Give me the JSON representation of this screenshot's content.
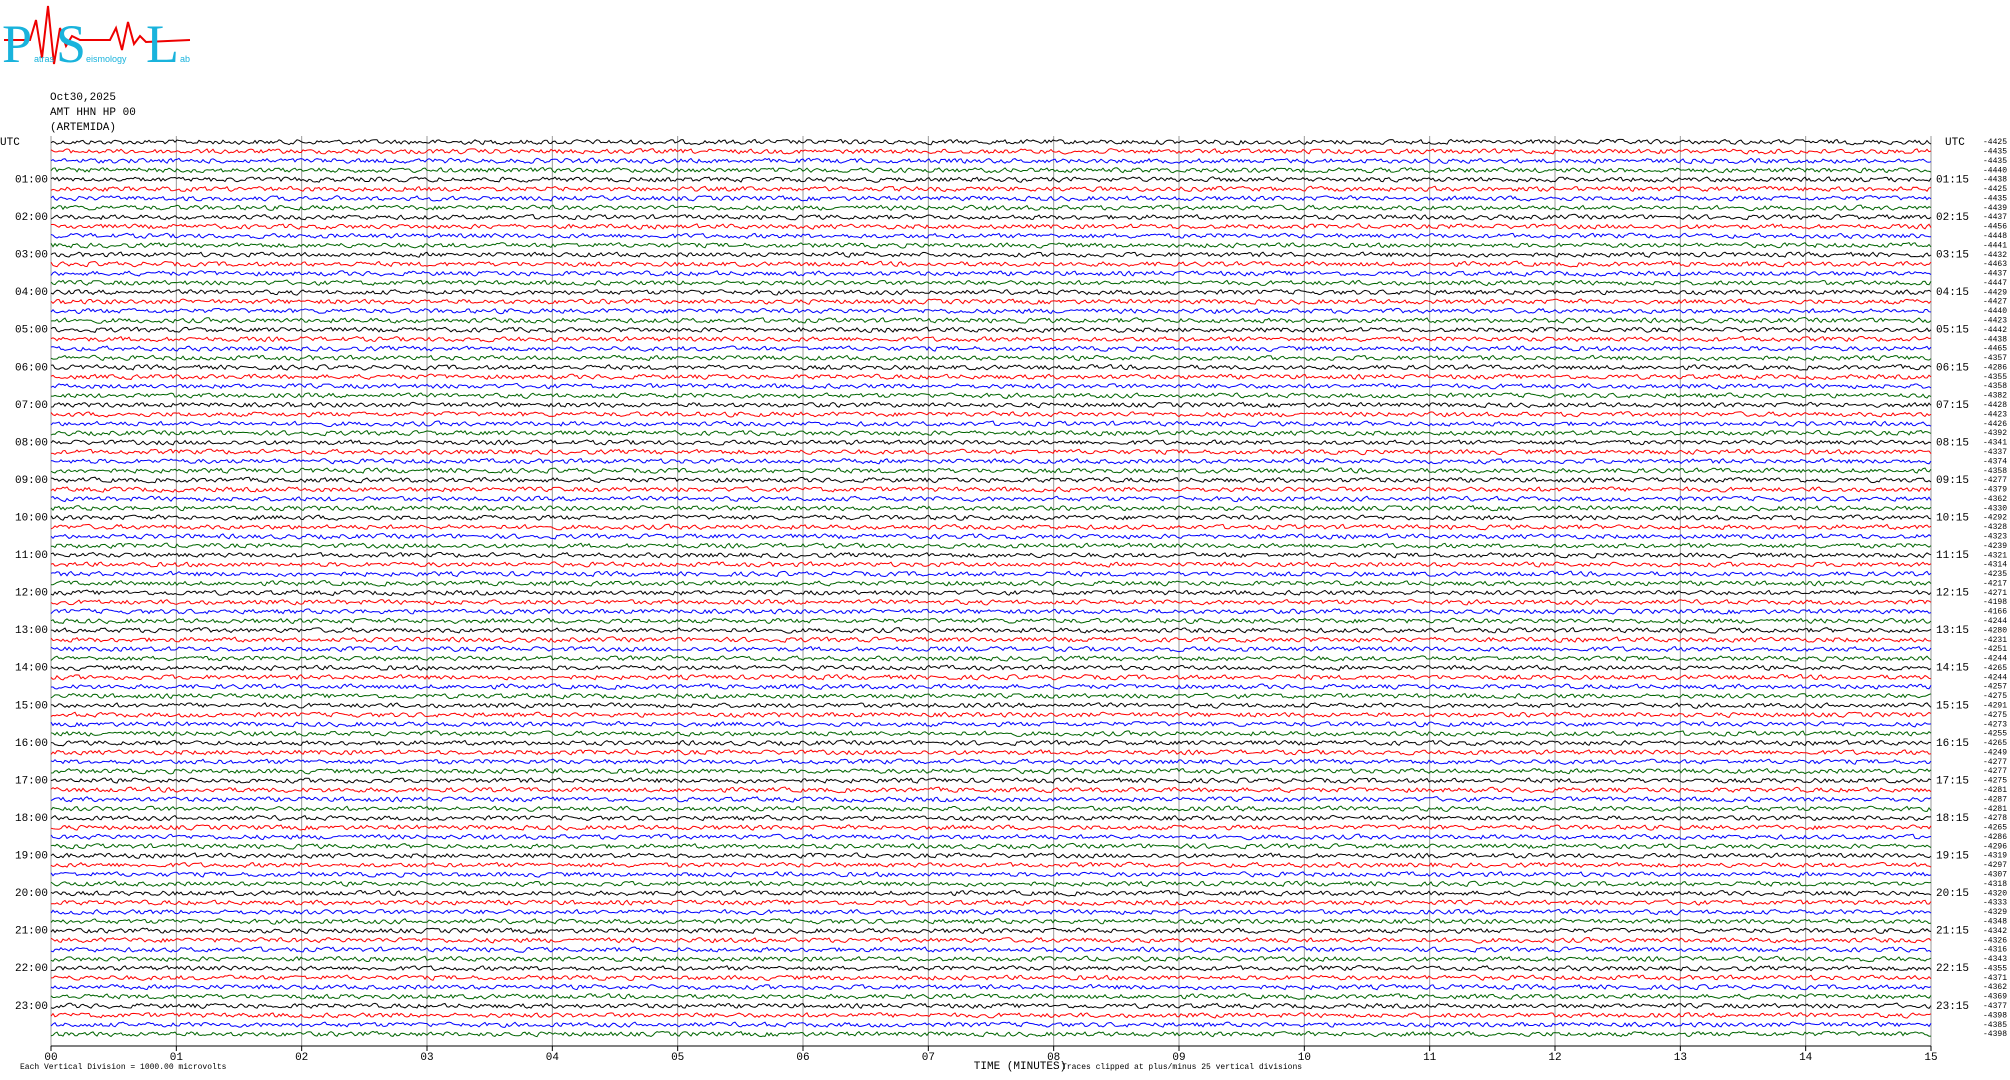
{
  "logo": {
    "letters": [
      "P",
      "S",
      "L"
    ],
    "words": [
      "atras",
      "eismology",
      "ab"
    ]
  },
  "chart_data": {
    "type": "seismogram",
    "date": "Oct30,2025",
    "station": "AMT HHN HP 00",
    "site": "(ARTEMIDA)",
    "time_zone_label": "UTC",
    "left_labels": [
      "01:00",
      "02:00",
      "03:00",
      "04:00",
      "05:00",
      "06:00",
      "07:00",
      "08:00",
      "09:00",
      "10:00",
      "11:00",
      "12:00",
      "13:00",
      "14:00",
      "15:00",
      "16:00",
      "17:00",
      "18:00",
      "19:00",
      "20:00",
      "21:00",
      "22:00",
      "23:00"
    ],
    "right_labels": [
      "01:15",
      "02:15",
      "03:15",
      "04:15",
      "05:15",
      "06:15",
      "07:15",
      "08:15",
      "09:15",
      "10:15",
      "11:15",
      "12:15",
      "13:15",
      "14:15",
      "15:15",
      "16:15",
      "17:15",
      "18:15",
      "19:15",
      "20:15",
      "21:15",
      "22:15",
      "23:15"
    ],
    "row_offsets": [
      -4425,
      -4435,
      -4435,
      -4440,
      -4438,
      -4425,
      -4435,
      -4439,
      -4437,
      -4456,
      -4448,
      -4441,
      -4432,
      -4463,
      -4437,
      -4447,
      -4429,
      -4427,
      -4440,
      -4423,
      -4442,
      -4438,
      -4465,
      -4357,
      -4286,
      -4355,
      -4358,
      -4382,
      -4428,
      -4423,
      -4426,
      -4392,
      -4341,
      -4337,
      -4374,
      -4358,
      -4277,
      -4379,
      -4362,
      -4330,
      -4292,
      -4328,
      -4323,
      -4239,
      -4321,
      -4314,
      -4235,
      -4217,
      -4271,
      -4198,
      -4166,
      -4244,
      -4280,
      -4231,
      -4251,
      -4244,
      -4265,
      -4244,
      -4257,
      -4275,
      -4291,
      -4275,
      -4273,
      -4255,
      -4265,
      -4249,
      -4277,
      -4277,
      -4275,
      -4281,
      -4287,
      -4281,
      -4278,
      -4265,
      -4286,
      -4296,
      -4319,
      -4297,
      -4307,
      -4318,
      -4320,
      -4333,
      -4329,
      -4348,
      -4342,
      -4326,
      -4316,
      -4343,
      -4355,
      -4371,
      -4362,
      -4369,
      -4377,
      -4398,
      -4385,
      -4398
    ],
    "trace_colors": [
      "#000000",
      "#ff0000",
      "#0000ff",
      "#006400"
    ],
    "xlim": [
      0,
      15
    ],
    "xticks": [
      {
        "value": 0,
        "label": "00"
      },
      {
        "value": 1,
        "label": "01"
      },
      {
        "value": 2,
        "label": "02"
      },
      {
        "value": 3,
        "label": "03"
      },
      {
        "value": 4,
        "label": "04"
      },
      {
        "value": 5,
        "label": "05"
      },
      {
        "value": 6,
        "label": "06"
      },
      {
        "value": 7,
        "label": "07"
      },
      {
        "value": 8,
        "label": "08"
      },
      {
        "value": 9,
        "label": "09"
      },
      {
        "value": 10,
        "label": "10"
      },
      {
        "value": 11,
        "label": "11"
      },
      {
        "value": 12,
        "label": "12"
      },
      {
        "value": 13,
        "label": "13"
      },
      {
        "value": 14,
        "label": "14"
      },
      {
        "value": 15,
        "label": "15"
      }
    ],
    "xlabel": "TIME (MINUTES)",
    "scale_note": "Each Vertical Division = 1000.00 microvolts",
    "clip_note": "Traces clipped at plus/minus 25 vertical divisions",
    "grid": true
  }
}
